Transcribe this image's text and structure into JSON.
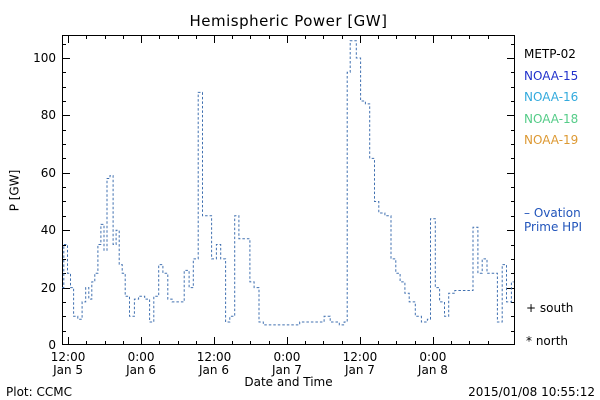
{
  "footer": {
    "left": "Plot: CCMC",
    "right": "2015/01/08 10:55:12"
  },
  "legend": {
    "satellites": [
      {
        "label": "METP-02",
        "color": "#000000"
      },
      {
        "label": "NOAA-15",
        "color": "#2233cc"
      },
      {
        "label": "NOAA-16",
        "color": "#33aadd"
      },
      {
        "label": "NOAA-18",
        "color": "#55cc88"
      },
      {
        "label": "NOAA-19",
        "color": "#dd9933"
      }
    ],
    "line_sample": "–",
    "line_label_line1": "Ovation",
    "line_label_line2": "Prime HPI",
    "line_label_color": "#2255bb",
    "south_marker": "+ south",
    "north_marker": "* north"
  },
  "chart_data": {
    "type": "line",
    "style": "step-after, dashed",
    "title": "Hemispheric Power [GW]",
    "xlabel": "Date and Time",
    "ylabel": "P [GW]",
    "ylim": [
      0,
      108
    ],
    "xlim_hours_since_jan5_0000": [
      11,
      85.5
    ],
    "grid": false,
    "legend_position": "right, outside",
    "y_ticks": [
      0,
      20,
      40,
      60,
      80,
      100
    ],
    "x_ticks": [
      {
        "t": 12,
        "time": "12:00",
        "date": "Jan 5"
      },
      {
        "t": 24,
        "time": "0:00",
        "date": "Jan 6"
      },
      {
        "t": 36,
        "time": "12:00",
        "date": "Jan 6"
      },
      {
        "t": 48,
        "time": "0:00",
        "date": "Jan 7"
      },
      {
        "t": 60,
        "time": "12:00",
        "date": "Jan 7"
      },
      {
        "t": 72,
        "time": "0:00",
        "date": "Jan 8"
      }
    ],
    "series": [
      {
        "name": "Ovation Prime HPI",
        "color": "#4070b0",
        "points": [
          [
            11.0,
            20
          ],
          [
            11.3,
            35
          ],
          [
            11.9,
            25
          ],
          [
            12.4,
            20
          ],
          [
            12.9,
            10
          ],
          [
            13.6,
            9
          ],
          [
            14.3,
            15
          ],
          [
            14.9,
            20
          ],
          [
            15.4,
            16
          ],
          [
            15.9,
            22
          ],
          [
            16.4,
            25
          ],
          [
            16.9,
            35
          ],
          [
            17.4,
            42
          ],
          [
            17.9,
            33
          ],
          [
            18.4,
            58
          ],
          [
            18.9,
            59
          ],
          [
            19.4,
            35
          ],
          [
            19.9,
            40
          ],
          [
            20.4,
            28
          ],
          [
            20.9,
            25
          ],
          [
            21.4,
            17
          ],
          [
            22.1,
            10
          ],
          [
            22.9,
            16
          ],
          [
            23.6,
            17
          ],
          [
            24.6,
            16
          ],
          [
            25.4,
            8
          ],
          [
            26.1,
            17
          ],
          [
            26.9,
            28
          ],
          [
            27.6,
            25
          ],
          [
            28.4,
            16
          ],
          [
            29.1,
            15
          ],
          [
            30.1,
            15
          ],
          [
            31.1,
            26
          ],
          [
            31.9,
            20
          ],
          [
            32.6,
            30
          ],
          [
            33.4,
            88
          ],
          [
            34.1,
            45
          ],
          [
            34.9,
            45
          ],
          [
            35.6,
            30
          ],
          [
            36.4,
            35
          ],
          [
            37.1,
            30
          ],
          [
            37.9,
            8
          ],
          [
            38.6,
            10
          ],
          [
            39.4,
            45
          ],
          [
            40.1,
            37
          ],
          [
            41.1,
            37
          ],
          [
            41.9,
            22
          ],
          [
            42.6,
            20
          ],
          [
            43.4,
            8
          ],
          [
            44.1,
            7
          ],
          [
            46.1,
            7
          ],
          [
            48.1,
            7
          ],
          [
            50.1,
            8
          ],
          [
            52.1,
            8
          ],
          [
            54.1,
            10
          ],
          [
            55.1,
            8
          ],
          [
            56.6,
            7
          ],
          [
            57.4,
            8
          ],
          [
            57.9,
            95
          ],
          [
            58.4,
            106
          ],
          [
            59.4,
            100
          ],
          [
            60.1,
            85
          ],
          [
            60.9,
            84
          ],
          [
            61.6,
            65
          ],
          [
            62.4,
            50
          ],
          [
            63.1,
            46
          ],
          [
            64.1,
            45
          ],
          [
            65.1,
            30
          ],
          [
            65.9,
            25
          ],
          [
            66.6,
            22
          ],
          [
            67.4,
            18
          ],
          [
            68.1,
            15
          ],
          [
            69.1,
            10
          ],
          [
            70.1,
            8
          ],
          [
            71.1,
            9
          ],
          [
            71.6,
            44
          ],
          [
            72.4,
            20
          ],
          [
            73.1,
            15
          ],
          [
            73.9,
            10
          ],
          [
            74.6,
            18
          ],
          [
            75.6,
            19
          ],
          [
            77.6,
            19
          ],
          [
            78.6,
            41
          ],
          [
            79.4,
            25
          ],
          [
            80.1,
            30
          ],
          [
            80.9,
            25
          ],
          [
            81.9,
            25
          ],
          [
            82.6,
            8
          ],
          [
            83.4,
            28
          ],
          [
            84.1,
            15
          ],
          [
            84.9,
            22
          ],
          [
            85.3,
            22
          ]
        ]
      }
    ]
  }
}
